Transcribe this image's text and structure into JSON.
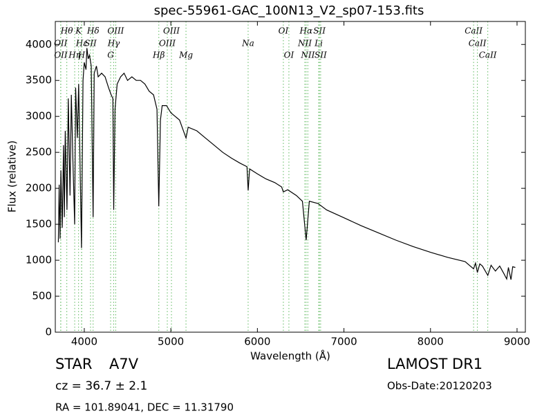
{
  "chart_data": {
    "type": "line",
    "title": "spec-55961-GAC_100N13_V2_sp07-153.fits",
    "x_label": "Wavelength (Å)",
    "y_label": "Flux (relative)",
    "color": "#000000",
    "line_color": "#5cb85c",
    "xlim": [
      3665,
      9096
    ],
    "ylim": [
      0,
      4320
    ],
    "xticks": [
      4000,
      5000,
      6000,
      7000,
      8000,
      9000
    ],
    "yticks": [
      0,
      500,
      1000,
      1500,
      2000,
      2500,
      3000,
      3500,
      4000
    ],
    "x": [
      3700,
      3710,
      3720,
      3730,
      3745,
      3760,
      3770,
      3780,
      3800,
      3815,
      3835,
      3850,
      3870,
      3889,
      3900,
      3920,
      3935,
      3950,
      3968,
      3985,
      4000,
      4020,
      4030,
      4045,
      4060,
      4080,
      4102,
      4115,
      4140,
      4160,
      4200,
      4240,
      4280,
      4310,
      4330,
      4340,
      4355,
      4380,
      4420,
      4460,
      4500,
      4550,
      4600,
      4650,
      4700,
      4750,
      4800,
      4840,
      4861,
      4880,
      4900,
      4950,
      5000,
      5050,
      5100,
      5175,
      5200,
      5300,
      5400,
      5500,
      5600,
      5700,
      5800,
      5880,
      5893,
      5910,
      6000,
      6100,
      6200,
      6280,
      6300,
      6350,
      6450,
      6520,
      6563,
      6600,
      6700,
      6800,
      7000,
      7200,
      7400,
      7600,
      7800,
      8000,
      8200,
      8400,
      8498,
      8520,
      8542,
      8570,
      8600,
      8662,
      8700,
      8750,
      8800,
      8850,
      8880,
      8900,
      8930,
      8950,
      8980
    ],
    "values": [
      1250,
      2050,
      1300,
      2250,
      1450,
      2600,
      1600,
      2800,
      1700,
      3250,
      1900,
      3300,
      2300,
      1500,
      3400,
      2700,
      3450,
      2400,
      1170,
      3500,
      3750,
      3650,
      3950,
      3800,
      3850,
      3700,
      1600,
      3600,
      3700,
      3550,
      3600,
      3550,
      3400,
      3300,
      3250,
      1700,
      3100,
      3450,
      3550,
      3600,
      3500,
      3550,
      3500,
      3500,
      3450,
      3350,
      3300,
      3100,
      1750,
      2950,
      3150,
      3150,
      3050,
      3000,
      2950,
      2700,
      2850,
      2800,
      2700,
      2600,
      2500,
      2420,
      2350,
      2300,
      1970,
      2270,
      2200,
      2130,
      2080,
      2020,
      1950,
      1980,
      1900,
      1820,
      1280,
      1820,
      1790,
      1700,
      1590,
      1480,
      1380,
      1280,
      1190,
      1110,
      1040,
      980,
      880,
      960,
      830,
      950,
      920,
      790,
      930,
      850,
      920,
      810,
      740,
      900,
      730,
      910,
      900
    ],
    "line_labels": [
      [
        {
          "name": "Hθ",
          "wavelength": 3798
        },
        {
          "name": "K",
          "wavelength": 3934
        },
        {
          "name": "Hδ",
          "wavelength": 4102
        },
        {
          "name": "OIII",
          "wavelength": 4363
        },
        {
          "name": "OIII",
          "wavelength": 5007
        },
        {
          "name": "OI",
          "wavelength": 6300
        },
        {
          "name": "Hα",
          "wavelength": 6563
        },
        {
          "name": "SII",
          "wavelength": 6717
        },
        {
          "name": "CaII",
          "wavelength": 8498
        }
      ],
      [
        {
          "name": "OII",
          "wavelength": 3727
        },
        {
          "name": "Hε",
          "wavelength": 3970
        },
        {
          "name": "SII",
          "wavelength": 4072
        },
        {
          "name": "Hγ",
          "wavelength": 4340
        },
        {
          "name": "OIII",
          "wavelength": 4959
        },
        {
          "name": "Na",
          "wavelength": 5893
        },
        {
          "name": "NII",
          "wavelength": 6548
        },
        {
          "name": "Li",
          "wavelength": 6708
        },
        {
          "name": "CaII",
          "wavelength": 8542
        }
      ],
      [
        {
          "name": "OII",
          "wavelength": 3729
        },
        {
          "name": "Hη",
          "wavelength": 3889
        },
        {
          "name": "H",
          "wavelength": 3968
        },
        {
          "name": "G",
          "wavelength": 4304
        },
        {
          "name": "Hβ",
          "wavelength": 4861
        },
        {
          "name": "Mg",
          "wavelength": 5175
        },
        {
          "name": "OI",
          "wavelength": 6364
        },
        {
          "name": "NII",
          "wavelength": 6583
        },
        {
          "name": "SII",
          "wavelength": 6731
        },
        {
          "name": "CaII",
          "wavelength": 8662
        }
      ]
    ],
    "object_class": "STAR",
    "subclass": "A7V",
    "redshift": "cz = 36.7 ± 2.1",
    "coords": "RA = 101.89041, DEC = 11.31790",
    "survey": "LAMOST DR1",
    "obs_date": "Obs-Date:20120203"
  }
}
